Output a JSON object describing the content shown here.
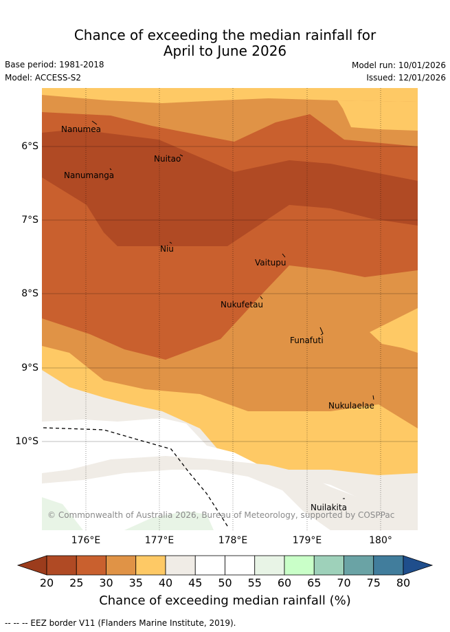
{
  "title": {
    "line1": "Chance of exceeding the median rainfall for",
    "line2": "April to June 2026"
  },
  "meta": {
    "base_period": "Base period: 1981-2018",
    "model": "Model: ACCESS-S2",
    "model_run": "Model run: 10/01/2026",
    "issued": "Issued: 12/01/2026"
  },
  "map": {
    "lat_labels": [
      "6°S",
      "7°S",
      "8°S",
      "9°S",
      "10°S"
    ],
    "lon_labels": [
      "176°E",
      "177°E",
      "178°E",
      "179°E",
      "180°"
    ],
    "places": [
      "Nanumea",
      "Nuitao",
      "Nanumanga",
      "Niu",
      "Vaitupu",
      "Nukufetau",
      "Funafuti",
      "Nukulaelae",
      "Nuilakita"
    ],
    "copyright": "© Commonwealth of Australia 2026, Bureau of Meteorology, supported by COSPPac"
  },
  "colorbar": {
    "ticks": [
      "20",
      "25",
      "30",
      "35",
      "40",
      "45",
      "50",
      "55",
      "60",
      "65",
      "70",
      "75",
      "80"
    ],
    "colors": [
      "#b04a24",
      "#c9602e",
      "#e09346",
      "#fec965",
      "#f0ece6",
      "#ffffff",
      "#ffffff",
      "#e8f4e6",
      "#c9ffc8",
      "#9ed1ba",
      "#6aa3a5",
      "#417d9c"
    ],
    "low_color": "#9c3c1c",
    "high_color": "#1f4e8c",
    "label": "Chance of exceeding median rainfall (%)"
  },
  "footnote": "-- -- -- EEZ border V11 (Flanders Marine Institute, 2019)."
}
